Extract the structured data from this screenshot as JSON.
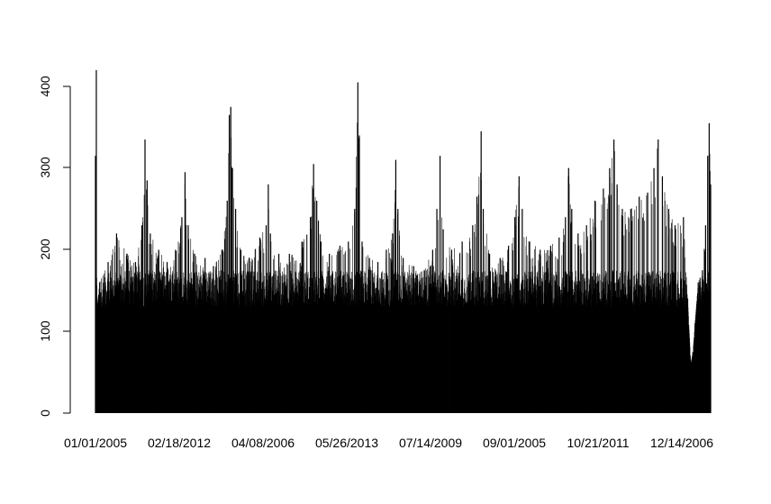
{
  "chart_data": {
    "type": "bar",
    "title": "",
    "xlabel": "",
    "ylabel": "",
    "ylim": [
      0,
      420
    ],
    "yticks": [
      0,
      100,
      200,
      300,
      400
    ],
    "ytick_labels": [
      "0",
      "100",
      "200",
      "300",
      "400"
    ],
    "xtick_labels": [
      "01/01/2005",
      "02/18/2012",
      "04/08/2006",
      "05/26/2013",
      "07/14/2009",
      "09/01/2005",
      "10/21/2011",
      "12/14/2006"
    ],
    "n_bars": 2920,
    "bar_color": "#000000",
    "grid": false,
    "legend": "none",
    "envelope": [
      {
        "i": 0,
        "v": 315
      },
      {
        "i": 4,
        "v": 420
      },
      {
        "i": 8,
        "v": 130
      },
      {
        "i": 20,
        "v": 160
      },
      {
        "i": 60,
        "v": 185
      },
      {
        "i": 100,
        "v": 220
      },
      {
        "i": 150,
        "v": 195
      },
      {
        "i": 190,
        "v": 185
      },
      {
        "i": 220,
        "v": 230
      },
      {
        "i": 235,
        "v": 335
      },
      {
        "i": 245,
        "v": 285
      },
      {
        "i": 260,
        "v": 220
      },
      {
        "i": 300,
        "v": 200
      },
      {
        "i": 340,
        "v": 185
      },
      {
        "i": 380,
        "v": 200
      },
      {
        "i": 410,
        "v": 240
      },
      {
        "i": 425,
        "v": 295
      },
      {
        "i": 440,
        "v": 230
      },
      {
        "i": 470,
        "v": 195
      },
      {
        "i": 520,
        "v": 190
      },
      {
        "i": 560,
        "v": 180
      },
      {
        "i": 600,
        "v": 200
      },
      {
        "i": 625,
        "v": 260
      },
      {
        "i": 635,
        "v": 365
      },
      {
        "i": 642,
        "v": 375
      },
      {
        "i": 650,
        "v": 300
      },
      {
        "i": 665,
        "v": 250
      },
      {
        "i": 690,
        "v": 200
      },
      {
        "i": 730,
        "v": 190
      },
      {
        "i": 780,
        "v": 215
      },
      {
        "i": 810,
        "v": 230
      },
      {
        "i": 820,
        "v": 280
      },
      {
        "i": 830,
        "v": 220
      },
      {
        "i": 870,
        "v": 195
      },
      {
        "i": 920,
        "v": 195
      },
      {
        "i": 980,
        "v": 210
      },
      {
        "i": 1020,
        "v": 240
      },
      {
        "i": 1035,
        "v": 305
      },
      {
        "i": 1050,
        "v": 260
      },
      {
        "i": 1070,
        "v": 210
      },
      {
        "i": 1110,
        "v": 195
      },
      {
        "i": 1160,
        "v": 205
      },
      {
        "i": 1200,
        "v": 210
      },
      {
        "i": 1230,
        "v": 250
      },
      {
        "i": 1245,
        "v": 405
      },
      {
        "i": 1252,
        "v": 340
      },
      {
        "i": 1265,
        "v": 210
      },
      {
        "i": 1300,
        "v": 190
      },
      {
        "i": 1340,
        "v": 185
      },
      {
        "i": 1380,
        "v": 200
      },
      {
        "i": 1410,
        "v": 220
      },
      {
        "i": 1425,
        "v": 310
      },
      {
        "i": 1435,
        "v": 250
      },
      {
        "i": 1460,
        "v": 190
      },
      {
        "i": 1510,
        "v": 180
      },
      {
        "i": 1560,
        "v": 175
      },
      {
        "i": 1600,
        "v": 200
      },
      {
        "i": 1620,
        "v": 250
      },
      {
        "i": 1635,
        "v": 315
      },
      {
        "i": 1650,
        "v": 225
      },
      {
        "i": 1690,
        "v": 200
      },
      {
        "i": 1740,
        "v": 210
      },
      {
        "i": 1790,
        "v": 230
      },
      {
        "i": 1810,
        "v": 265
      },
      {
        "i": 1830,
        "v": 345
      },
      {
        "i": 1840,
        "v": 250
      },
      {
        "i": 1870,
        "v": 195
      },
      {
        "i": 1920,
        "v": 190
      },
      {
        "i": 1960,
        "v": 205
      },
      {
        "i": 1990,
        "v": 240
      },
      {
        "i": 2010,
        "v": 290
      },
      {
        "i": 2025,
        "v": 250
      },
      {
        "i": 2060,
        "v": 210
      },
      {
        "i": 2110,
        "v": 200
      },
      {
        "i": 2160,
        "v": 205
      },
      {
        "i": 2200,
        "v": 215
      },
      {
        "i": 2230,
        "v": 240
      },
      {
        "i": 2245,
        "v": 300
      },
      {
        "i": 2260,
        "v": 250
      },
      {
        "i": 2290,
        "v": 220
      },
      {
        "i": 2330,
        "v": 230
      },
      {
        "i": 2370,
        "v": 260
      },
      {
        "i": 2410,
        "v": 275
      },
      {
        "i": 2440,
        "v": 300
      },
      {
        "i": 2460,
        "v": 335
      },
      {
        "i": 2475,
        "v": 280
      },
      {
        "i": 2500,
        "v": 250
      },
      {
        "i": 2540,
        "v": 250
      },
      {
        "i": 2580,
        "v": 265
      },
      {
        "i": 2620,
        "v": 270
      },
      {
        "i": 2650,
        "v": 300
      },
      {
        "i": 2670,
        "v": 335
      },
      {
        "i": 2690,
        "v": 290
      },
      {
        "i": 2720,
        "v": 250
      },
      {
        "i": 2750,
        "v": 230
      },
      {
        "i": 2790,
        "v": 240
      },
      {
        "i": 2810,
        "v": 140
      },
      {
        "i": 2825,
        "v": 60
      },
      {
        "i": 2835,
        "v": 75
      },
      {
        "i": 2845,
        "v": 110
      },
      {
        "i": 2860,
        "v": 160
      },
      {
        "i": 2880,
        "v": 175
      },
      {
        "i": 2895,
        "v": 230
      },
      {
        "i": 2905,
        "v": 315
      },
      {
        "i": 2912,
        "v": 355
      },
      {
        "i": 2919,
        "v": 280
      }
    ],
    "base_band": {
      "low": 130,
      "high": 175
    }
  }
}
